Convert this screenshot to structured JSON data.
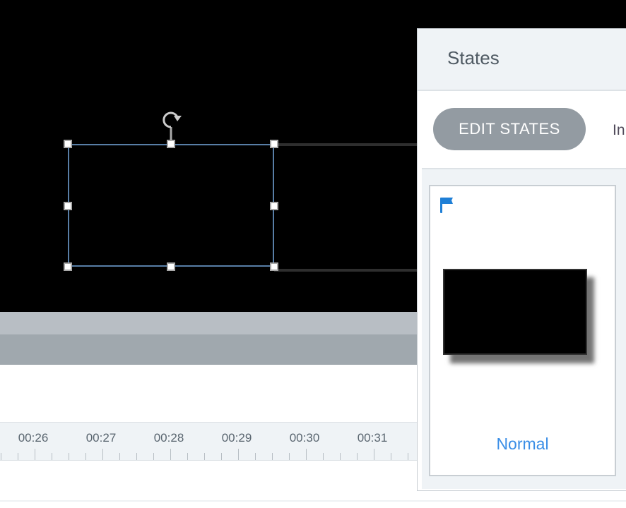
{
  "panel": {
    "title": "States",
    "edit_button": "EDIT STATES",
    "tab_partial": "In",
    "states": [
      {
        "label": "Normal",
        "initial_flag": true
      }
    ],
    "accent_color": "#3a8ee6"
  },
  "timeline": {
    "labels": [
      "00:26",
      "00:27",
      "00:28",
      "00:29",
      "00:30",
      "00:31"
    ]
  }
}
